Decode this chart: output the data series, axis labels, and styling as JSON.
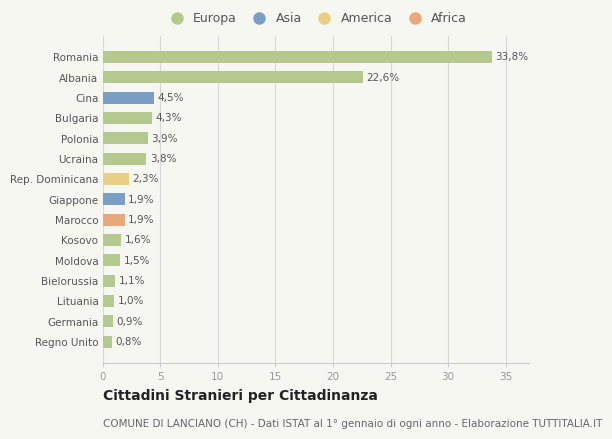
{
  "countries": [
    "Romania",
    "Albania",
    "Cina",
    "Bulgaria",
    "Polonia",
    "Ucraina",
    "Rep. Dominicana",
    "Giappone",
    "Marocco",
    "Kosovo",
    "Moldova",
    "Bielorussia",
    "Lituania",
    "Germania",
    "Regno Unito"
  ],
  "values": [
    33.8,
    22.6,
    4.5,
    4.3,
    3.9,
    3.8,
    2.3,
    1.9,
    1.9,
    1.6,
    1.5,
    1.1,
    1.0,
    0.9,
    0.8
  ],
  "labels": [
    "33,8%",
    "22,6%",
    "4,5%",
    "4,3%",
    "3,9%",
    "3,8%",
    "2,3%",
    "1,9%",
    "1,9%",
    "1,6%",
    "1,5%",
    "1,1%",
    "1,0%",
    "0,9%",
    "0,8%"
  ],
  "continent": [
    "Europa",
    "Europa",
    "Asia",
    "Europa",
    "Europa",
    "Europa",
    "America",
    "Asia",
    "Africa",
    "Europa",
    "Europa",
    "Europa",
    "Europa",
    "Europa",
    "Europa"
  ],
  "colors": {
    "Europa": "#b5c98e",
    "Asia": "#7b9ec4",
    "America": "#e8d080",
    "Africa": "#e8a87c"
  },
  "legend_order": [
    "Europa",
    "Asia",
    "America",
    "Africa"
  ],
  "xlim": [
    0,
    37
  ],
  "xticks": [
    0,
    5,
    10,
    15,
    20,
    25,
    30,
    35
  ],
  "title": "Cittadini Stranieri per Cittadinanza",
  "subtitle": "COMUNE DI LANCIANO (CH) - Dati ISTAT al 1° gennaio di ogni anno - Elaborazione TUTTITALIA.IT",
  "background_color": "#f7f7f2",
  "bar_height": 0.6,
  "title_fontsize": 10,
  "subtitle_fontsize": 7.5,
  "label_fontsize": 7.5,
  "tick_fontsize": 7.5,
  "legend_fontsize": 9
}
